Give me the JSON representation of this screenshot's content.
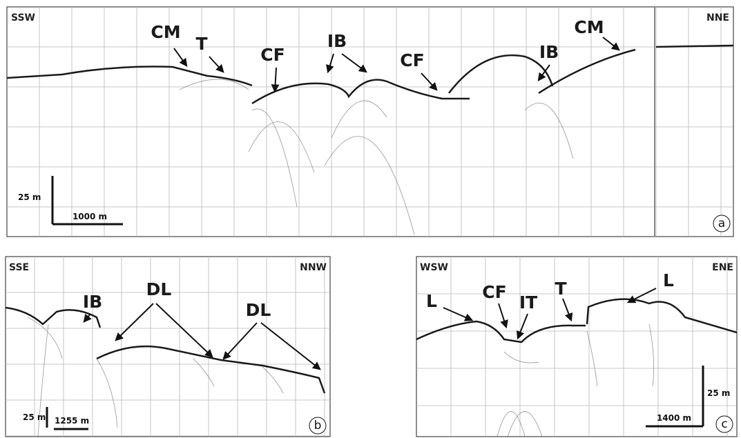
{
  "panels": [
    {
      "id": "a",
      "left_direction": "SSW",
      "right_direction": "NNE",
      "vertical_scale": "25 m",
      "horizontal_scale": "1000 m",
      "annotations": [
        "CM",
        "T",
        "CF",
        "IB",
        "CF",
        "IB",
        "CM"
      ]
    },
    {
      "id": "b",
      "left_direction": "SSE",
      "right_direction": "NNW",
      "vertical_scale": "25 m",
      "horizontal_scale": "1255 m",
      "annotations": [
        "IB",
        "DL",
        "DL"
      ]
    },
    {
      "id": "c",
      "left_direction": "WSW",
      "right_direction": "ENE",
      "vertical_scale": "25 m",
      "horizontal_scale": "1400 m",
      "annotations": [
        "L",
        "CF",
        "IT",
        "T",
        "L"
      ]
    }
  ]
}
